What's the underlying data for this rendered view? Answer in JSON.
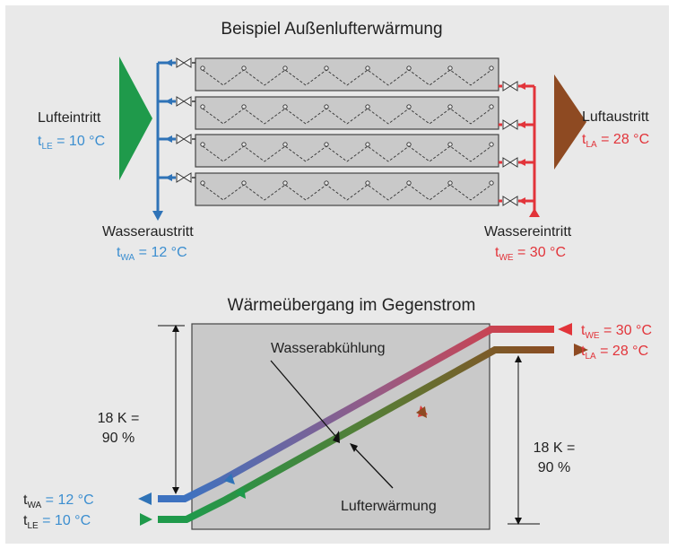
{
  "top": {
    "title": "Beispiel Außenlufterwärmung",
    "inlet_air": {
      "label": "Lufteintritt",
      "t": "t",
      "sub": "LE",
      "value": " = 10 °C"
    },
    "outlet_air": {
      "label": "Luftaustritt",
      "t": "t",
      "sub": "LA",
      "value": " = 28 °C"
    },
    "water_out": {
      "label": "Wasseraustritt",
      "t": "t",
      "sub": "WA",
      "value": " = 12 °C"
    },
    "water_in": {
      "label": "Wassereintritt",
      "t": "t",
      "sub": "WE",
      "value": " = 30 °C"
    }
  },
  "bottom": {
    "title": "Wärmeübergang im Gegenstrom",
    "water_cooling": "Wasserabkühlung",
    "air_heating": "Lufterwärmung",
    "left_dim": {
      "line1": "18 K =",
      "line2": "90 %"
    },
    "right_dim": {
      "line1": "18 K =",
      "line2": "90 %"
    },
    "t_we": {
      "t": "t",
      "sub": "WE",
      "value": " = 30 °C"
    },
    "t_la": {
      "t": "t",
      "sub": "LA",
      "value": " = 28 °C"
    },
    "t_wa": {
      "t": "t",
      "sub": "WA",
      "value": " = 12 °C"
    },
    "t_le": {
      "t": "t",
      "sub": "LE",
      "value": " = 10 °C"
    }
  },
  "colors": {
    "background": "#e9e9e9",
    "water_hot": "#e2343a",
    "water_cold": "#2f73b7",
    "air_cold": "#1f9a4b",
    "air_hot": "#8e4a22",
    "label_blue": "#3b8ed0",
    "label_red": "#e2343a"
  }
}
